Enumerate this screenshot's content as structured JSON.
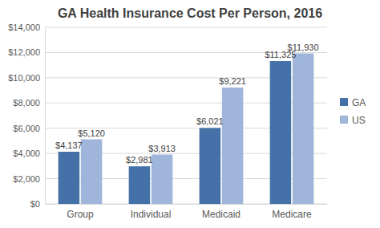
{
  "chart_data": {
    "type": "bar",
    "title": "GA Health Insurance Cost Per Person, 2016",
    "categories": [
      "Group",
      "Individual",
      "Medicaid",
      "Medicare"
    ],
    "series": [
      {
        "name": "GA",
        "color": "#4472a8",
        "values": [
          4137,
          2981,
          6021,
          11325
        ],
        "value_labels": [
          "$4,137",
          "$2,981",
          "$6,021",
          "$11,325"
        ]
      },
      {
        "name": "US",
        "color": "#9fb6da",
        "values": [
          5120,
          3913,
          9221,
          11930
        ],
        "value_labels": [
          "$5,120",
          "$3,913",
          "$9,221",
          "$11,930"
        ]
      }
    ],
    "ylim": [
      0,
      14000
    ],
    "yticks": [
      {
        "value": 0,
        "label": "$0"
      },
      {
        "value": 2000,
        "label": "$2,000"
      },
      {
        "value": 4000,
        "label": "$4,000"
      },
      {
        "value": 6000,
        "label": "$6,000"
      },
      {
        "value": 8000,
        "label": "$8,000"
      },
      {
        "value": 10000,
        "label": "$10,000"
      },
      {
        "value": 12000,
        "label": "$12,000"
      },
      {
        "value": 14000,
        "label": "$14,000"
      }
    ],
    "grid": true,
    "data_labels": true,
    "legend": "right"
  }
}
